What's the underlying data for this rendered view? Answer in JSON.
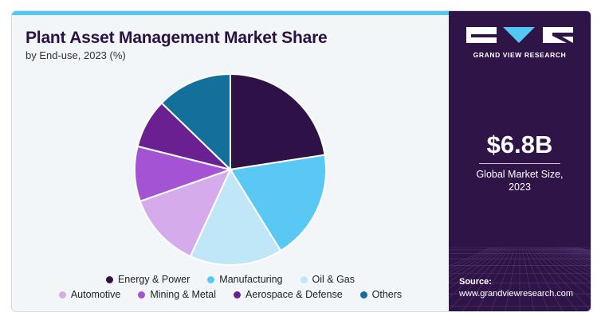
{
  "header": {
    "title": "Plant Asset Management Market Share",
    "subtitle": "by End-use, 2023 (%)"
  },
  "colors": {
    "accent_bar": "#54c8f5",
    "panel_bg": "#2f1448"
  },
  "chart_data": {
    "type": "pie",
    "title": "Plant Asset Management Market Share",
    "subtitle": "by End-use, 2023 (%)",
    "legend_position": "bottom",
    "slices": [
      {
        "name": "Energy & Power",
        "value": 23,
        "color": "#2e1247"
      },
      {
        "name": "Manufacturing",
        "value": 19,
        "color": "#5ac8f5"
      },
      {
        "name": "Oil & Gas",
        "value": 16,
        "color": "#bfe7f8"
      },
      {
        "name": "Automotive",
        "value": 13,
        "color": "#d5abec"
      },
      {
        "name": "Mining & Metal",
        "value": 9.5,
        "color": "#a453d4"
      },
      {
        "name": "Aerospace & Defense",
        "value": 8.5,
        "color": "#6a2090"
      },
      {
        "name": "Others",
        "value": 13,
        "color": "#12709a"
      }
    ]
  },
  "brand": {
    "name": "GRAND VIEW RESEARCH"
  },
  "kpi": {
    "value": "$6.8B",
    "label_line1": "Global Market Size,",
    "label_line2": "2023"
  },
  "source": {
    "label": "Source:",
    "url": "www.grandviewresearch.com"
  }
}
